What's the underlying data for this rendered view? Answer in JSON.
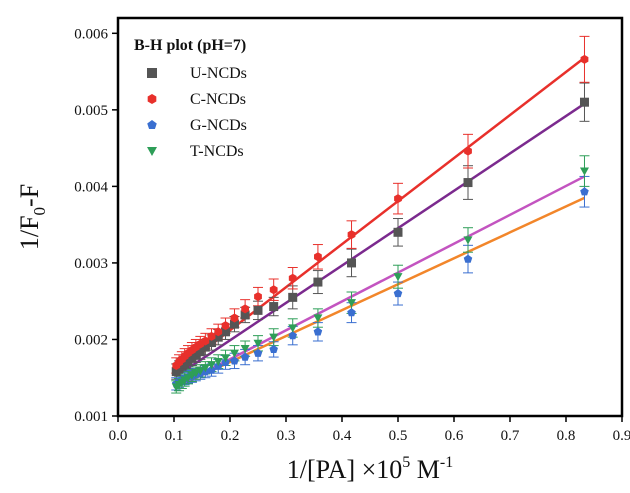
{
  "chart_data": {
    "type": "scatter",
    "title": "B-H plot (pH=7)",
    "xlabel": {
      "main": "1/[PA] ×10",
      "sup": "5",
      "tail": " M",
      "sup2": "-1"
    },
    "ylabel": {
      "main": "1/F",
      "sub": "0",
      "tail": "-F"
    },
    "xlim": [
      0.0,
      0.9
    ],
    "ylim": [
      0.001,
      0.0062
    ],
    "xticks": [
      "0.0",
      "0.1",
      "0.2",
      "0.3",
      "0.4",
      "0.5",
      "0.6",
      "0.7",
      "0.8",
      "0.9"
    ],
    "yticks": [
      "0.001",
      "0.002",
      "0.003",
      "0.004",
      "0.005",
      "0.006"
    ],
    "grid": false,
    "legend_position": "top-left",
    "x": [
      0.104,
      0.109,
      0.114,
      0.119,
      0.125,
      0.132,
      0.139,
      0.147,
      0.156,
      0.167,
      0.179,
      0.192,
      0.208,
      0.227,
      0.25,
      0.278,
      0.312,
      0.357,
      0.417,
      0.5,
      0.625,
      0.833
    ],
    "series": [
      {
        "name": "U-NCDs",
        "color": "#555555",
        "line_color": "#7b2a8e",
        "marker": "square",
        "values": [
          0.00158,
          0.00162,
          0.00165,
          0.00168,
          0.00172,
          0.00176,
          0.0018,
          0.00184,
          0.0019,
          0.00196,
          0.00203,
          0.0021,
          0.0022,
          0.00232,
          0.00238,
          0.00243,
          0.00255,
          0.00275,
          0.003,
          0.0034,
          0.00405,
          0.0051
        ],
        "errors": [
          0.0001,
          0.0001,
          0.0001,
          0.0001,
          0.0001,
          0.0001,
          0.0001,
          0.0001,
          0.0001,
          0.0001,
          0.0001,
          0.0001,
          0.0001,
          0.0001,
          0.00012,
          0.00012,
          0.00015,
          0.00015,
          0.00018,
          0.00018,
          0.00022,
          0.00025
        ]
      },
      {
        "name": "C-NCDs",
        "color": "#e8302b",
        "line_color": "#e8302b",
        "marker": "hexagon",
        "values": [
          0.00166,
          0.0017,
          0.00174,
          0.00178,
          0.00182,
          0.00186,
          0.0019,
          0.00194,
          0.00198,
          0.00204,
          0.0021,
          0.00218,
          0.00228,
          0.0024,
          0.00256,
          0.00265,
          0.0028,
          0.00308,
          0.00337,
          0.00384,
          0.00446,
          0.00566
        ],
        "errors": [
          0.0001,
          0.0001,
          0.0001,
          0.0001,
          0.0001,
          0.0001,
          0.0001,
          0.0001,
          0.0001,
          0.0001,
          0.0001,
          0.0001,
          0.00012,
          0.00012,
          0.00012,
          0.00014,
          0.00014,
          0.00016,
          0.00018,
          0.0002,
          0.00022,
          0.0003
        ]
      },
      {
        "name": "G-NCDs",
        "color": "#3a6fd0",
        "line_color": "#f2862a",
        "marker": "pentagon",
        "values": [
          0.00142,
          0.00145,
          0.00147,
          0.00149,
          0.00151,
          0.00152,
          0.00154,
          0.00156,
          0.00158,
          0.0016,
          0.00165,
          0.0017,
          0.00172,
          0.00177,
          0.00182,
          0.00187,
          0.00205,
          0.0021,
          0.00235,
          0.0026,
          0.00305,
          0.00393
        ],
        "errors": [
          8e-05,
          8e-05,
          8e-05,
          8e-05,
          8e-05,
          8e-05,
          8e-05,
          8e-05,
          8e-05,
          8e-05,
          9e-05,
          9e-05,
          0.0001,
          0.0001,
          0.0001,
          0.0001,
          0.00012,
          0.00012,
          0.00013,
          0.00015,
          0.00018,
          0.0002
        ]
      },
      {
        "name": "T-NCDs",
        "color": "#2e9e58",
        "line_color": "#c354c0",
        "marker": "triangle-down",
        "values": [
          0.00138,
          0.00141,
          0.00144,
          0.00147,
          0.0015,
          0.00153,
          0.00156,
          0.00159,
          0.00163,
          0.00167,
          0.00171,
          0.00176,
          0.00182,
          0.00188,
          0.00195,
          0.00203,
          0.00215,
          0.00228,
          0.00248,
          0.00282,
          0.0033,
          0.0042
        ],
        "errors": [
          8e-05,
          8e-05,
          8e-05,
          8e-05,
          8e-05,
          8e-05,
          8e-05,
          8e-05,
          8e-05,
          9e-05,
          9e-05,
          0.0001,
          0.0001,
          0.0001,
          0.0001,
          0.00011,
          0.00012,
          0.00012,
          0.00014,
          0.00015,
          0.00016,
          0.0002
        ]
      }
    ],
    "fit_lines": [
      {
        "series": "U-NCDs",
        "x": [
          0.104,
          0.833
        ],
        "y": [
          0.00152,
          0.00508
        ]
      },
      {
        "series": "C-NCDs",
        "x": [
          0.104,
          0.833
        ],
        "y": [
          0.00158,
          0.00568
        ]
      },
      {
        "series": "G-NCDs",
        "x": [
          0.104,
          0.833
        ],
        "y": [
          0.00138,
          0.00385
        ]
      },
      {
        "series": "T-NCDs",
        "x": [
          0.104,
          0.833
        ],
        "y": [
          0.00138,
          0.00413
        ]
      }
    ]
  }
}
